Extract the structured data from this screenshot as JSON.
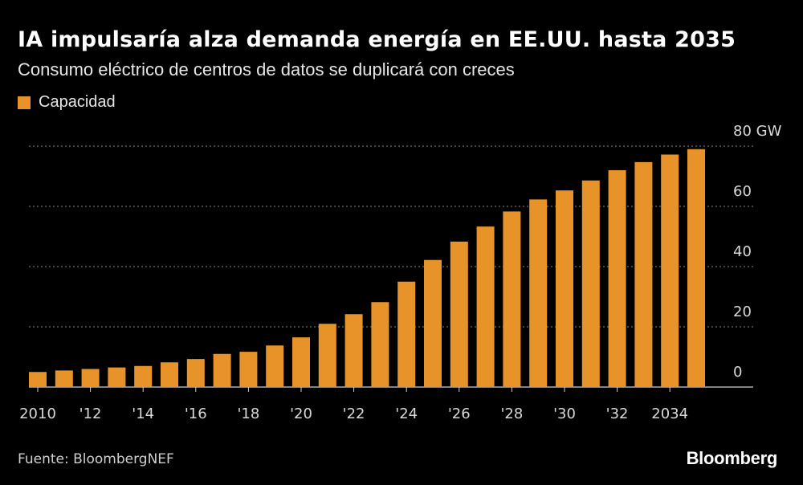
{
  "title": "IA impulsaría alza demanda energía en EE.UU. hasta 2035",
  "subtitle": "Consumo eléctrico de centros de datos se duplicará con creces",
  "source": "Fuente: BloombergNEF",
  "brand": "Bloomberg",
  "colors": {
    "bar": "#e8932a",
    "background": "#000000",
    "grid": "#8a8a8a"
  },
  "chart_data": {
    "type": "bar",
    "title": "IA impulsaría alza demanda energía en EE.UU. hasta 2035",
    "subtitle": "Consumo eléctrico de centros de datos se duplicará con creces",
    "legend": [
      "Capacidad"
    ],
    "legend_position": "top-left",
    "unit": "GW",
    "ylim": [
      0,
      80
    ],
    "yticks": [
      0,
      20,
      40,
      60,
      80
    ],
    "ytick_labels": [
      "0",
      "20",
      "40",
      "60",
      "80 GW"
    ],
    "grid": true,
    "y_axis_side": "right",
    "categories": [
      "2010",
      "2011",
      "2012",
      "2013",
      "2014",
      "2015",
      "2016",
      "2017",
      "2018",
      "2019",
      "2020",
      "2021",
      "2022",
      "2023",
      "2024",
      "2025",
      "2026",
      "2027",
      "2028",
      "2029",
      "2030",
      "2031",
      "2032",
      "2033",
      "2034",
      "2035"
    ],
    "xtick_indices": [
      0,
      2,
      4,
      6,
      8,
      10,
      12,
      14,
      16,
      18,
      20,
      22,
      24
    ],
    "xtick_labels": [
      "2010",
      "'12",
      "'14",
      "'16",
      "'18",
      "'20",
      "'22",
      "'24",
      "'26",
      "'28",
      "'30",
      "'32",
      "2034"
    ],
    "series": [
      {
        "name": "Capacidad",
        "values": [
          5,
          5.5,
          6,
          6.5,
          7,
          8.2,
          9.3,
          11,
          11.7,
          13.8,
          16.5,
          21,
          24.2,
          28.2,
          35,
          42.2,
          48.3,
          53.3,
          58.3,
          62.3,
          65.3,
          68.6,
          72,
          74.7,
          77.2,
          79
        ]
      }
    ]
  }
}
